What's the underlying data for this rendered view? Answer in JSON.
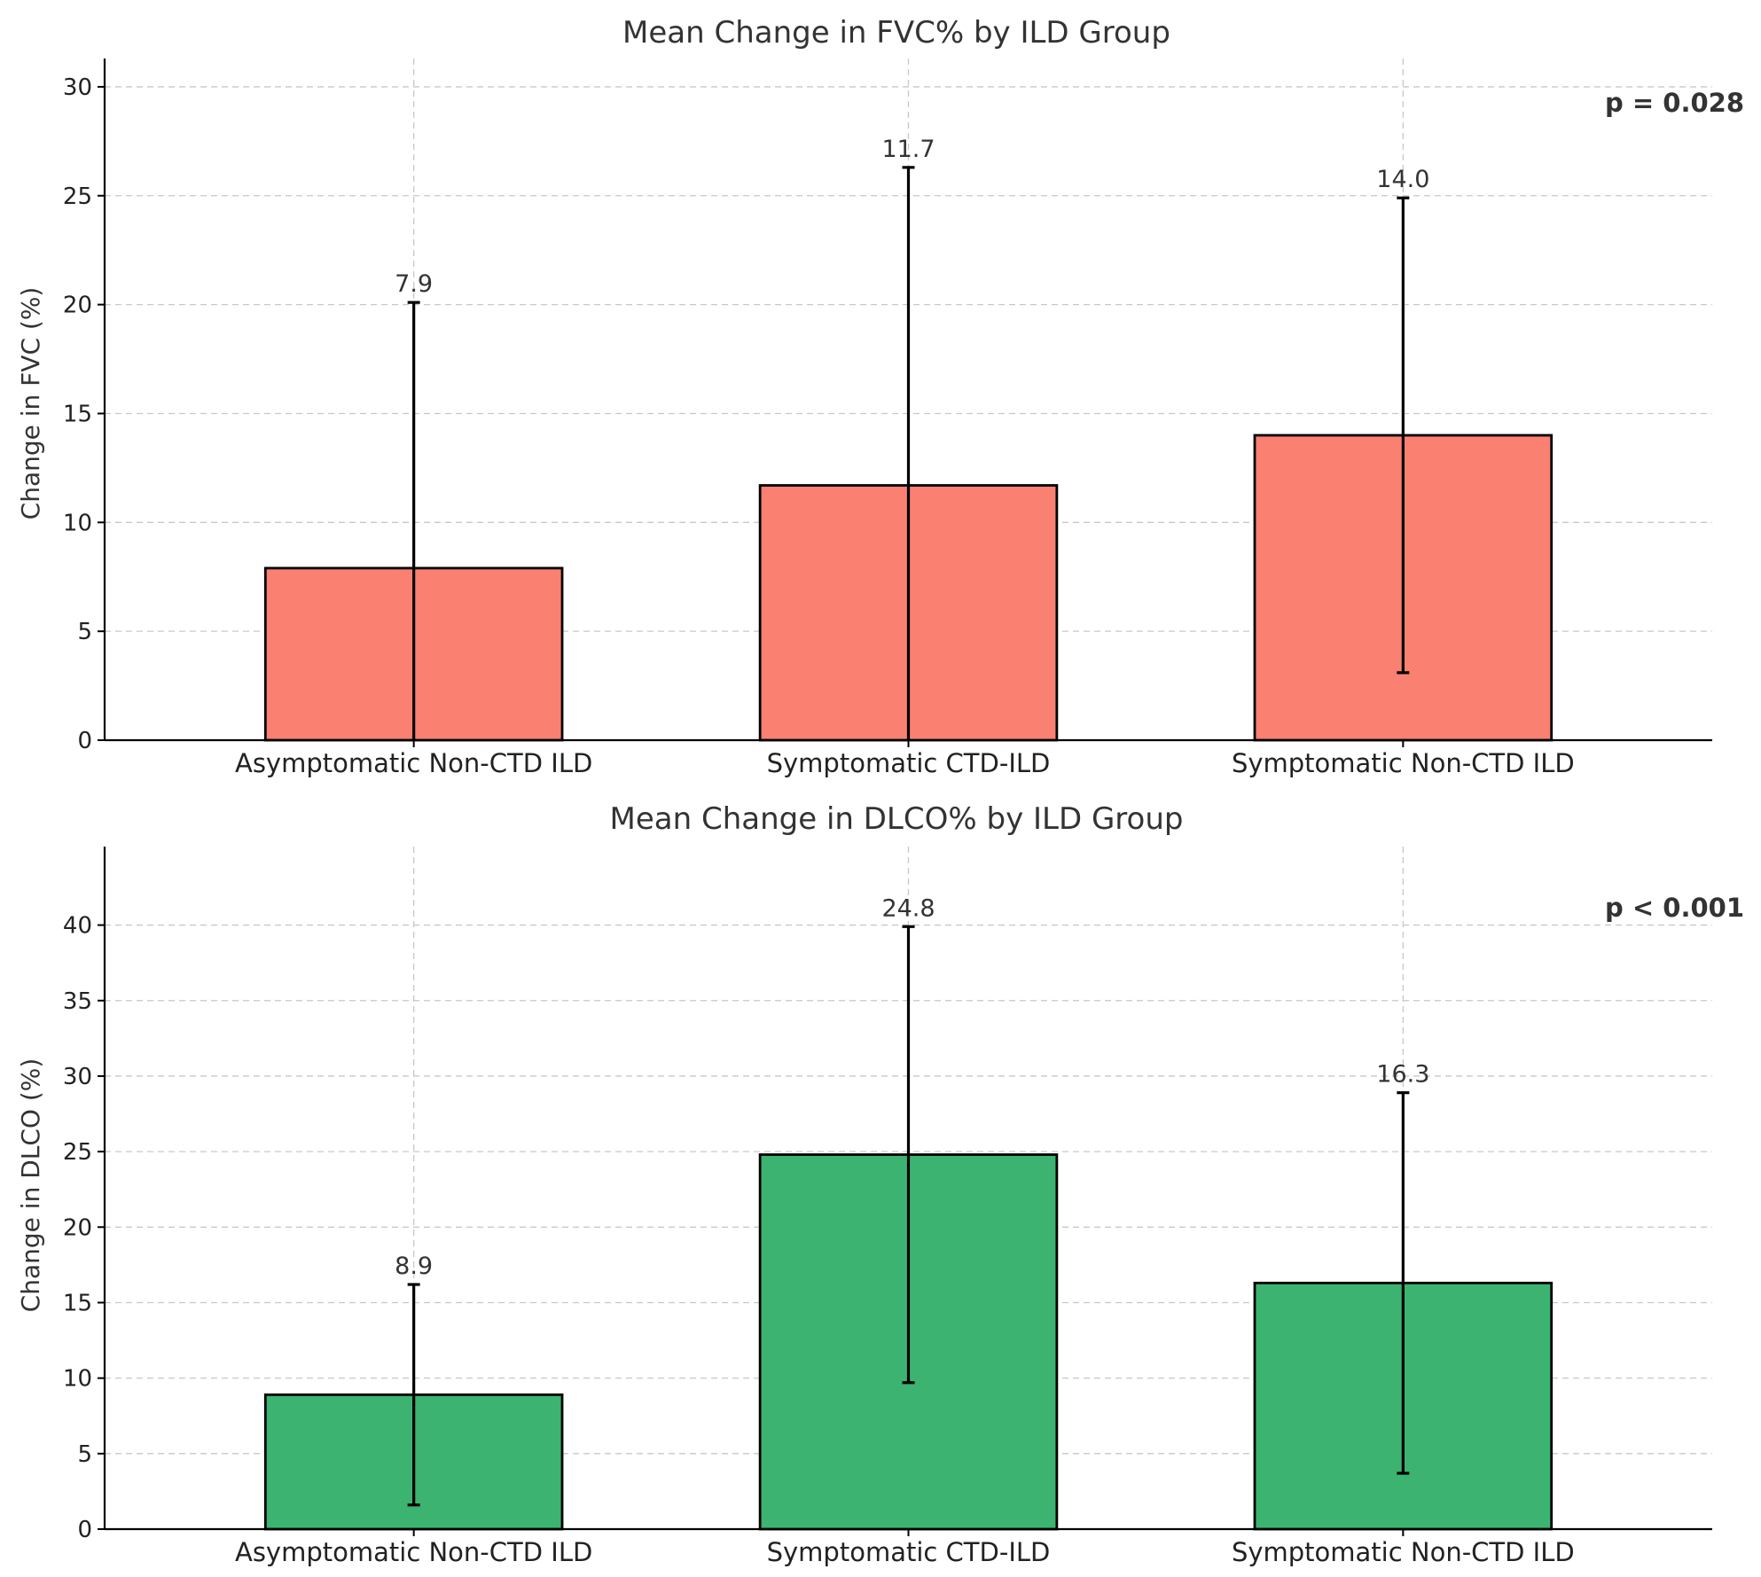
{
  "colors": {
    "fvc_bar": "#FA8072",
    "dlco_bar": "#3CB371",
    "error_bar": "#000000"
  },
  "chart_data": [
    {
      "type": "bar",
      "title": "Mean Change in FVC% by ILD Group",
      "xlabel": "",
      "ylabel": "Change in FVC (%)",
      "categories": [
        "Asymptomatic Non-CTD ILD",
        "Symptomatic CTD-ILD",
        "Symptomatic Non-CTD ILD"
      ],
      "values": [
        7.9,
        11.7,
        14.0
      ],
      "value_labels": [
        "7.9",
        "11.7",
        "14.0"
      ],
      "error": [
        12.2,
        14.6,
        10.9
      ],
      "ylim": [
        0,
        31.3
      ],
      "yticks": [
        0,
        5,
        10,
        15,
        20,
        25,
        30
      ],
      "grid": true,
      "annotation": "p = 0.028",
      "color": "#FA8072"
    },
    {
      "type": "bar",
      "title": "Mean Change in DLCO% by ILD Group",
      "xlabel": "",
      "ylabel": "Change in DLCO (%)",
      "categories": [
        "Asymptomatic Non-CTD ILD",
        "Symptomatic CTD-ILD",
        "Symptomatic Non-CTD ILD"
      ],
      "values": [
        8.9,
        24.8,
        16.3
      ],
      "value_labels": [
        "8.9",
        "24.8",
        "16.3"
      ],
      "error": [
        7.3,
        15.1,
        12.6
      ],
      "ylim": [
        0,
        45.2
      ],
      "yticks": [
        0,
        5,
        10,
        15,
        20,
        25,
        30,
        35,
        40
      ],
      "grid": true,
      "annotation": "p < 0.001",
      "color": "#3CB371"
    }
  ]
}
